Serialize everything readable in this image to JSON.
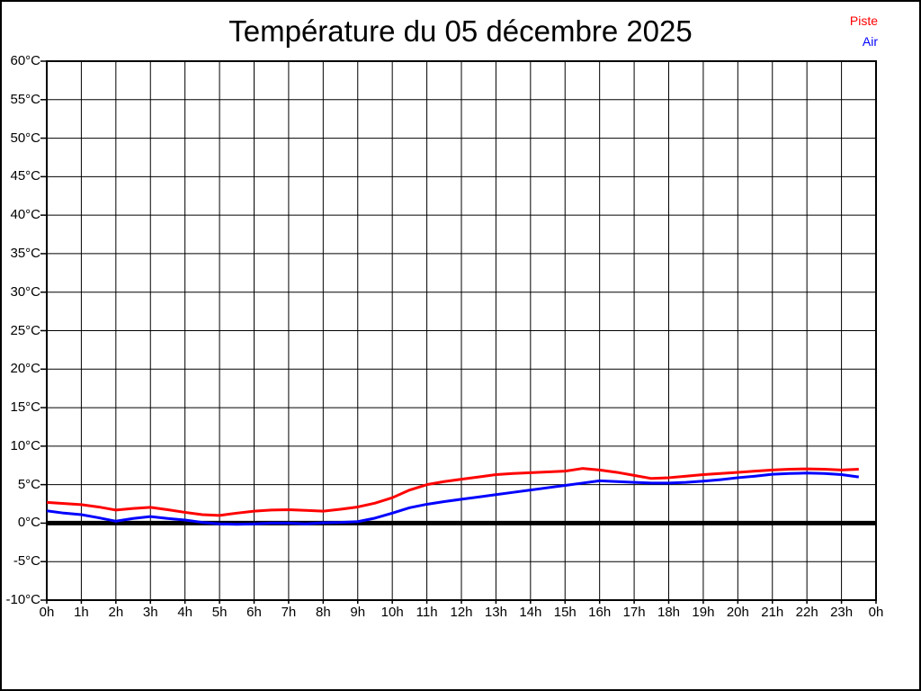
{
  "title": "Température du 05 décembre 2025",
  "legend": {
    "position": "top-right",
    "items": [
      {
        "label": "Piste",
        "color": "#ff0000"
      },
      {
        "label": "Air",
        "color": "#0000ff"
      }
    ]
  },
  "chart_data": {
    "type": "line",
    "title": "Température du 05 décembre 2025",
    "xlabel": "",
    "ylabel": "",
    "y_unit": "°C",
    "x_unit": "h",
    "xlim_hours": [
      0,
      24
    ],
    "ylim": [
      -10,
      60
    ],
    "y_step": 5,
    "x_step": 1,
    "grid": true,
    "zero_line_bold": true,
    "y_tick_labels": [
      "60°C",
      "55°C",
      "50°C",
      "45°C",
      "40°C",
      "35°C",
      "30°C",
      "25°C",
      "20°C",
      "15°C",
      "10°C",
      "5°C",
      "0°C",
      "-5°C",
      "-10°C"
    ],
    "x_tick_labels": [
      "0h",
      "1h",
      "2h",
      "3h",
      "4h",
      "5h",
      "6h",
      "7h",
      "8h",
      "9h",
      "10h",
      "11h",
      "12h",
      "13h",
      "14h",
      "15h",
      "16h",
      "17h",
      "18h",
      "19h",
      "20h",
      "21h",
      "22h",
      "23h",
      "0h"
    ],
    "series": [
      {
        "name": "Piste",
        "color": "#ff0000",
        "x": [
          0,
          0.5,
          1,
          1.5,
          2,
          2.5,
          3,
          3.5,
          4,
          4.5,
          5,
          5.5,
          6,
          6.5,
          7,
          7.5,
          8,
          8.5,
          9,
          9.5,
          10,
          10.5,
          11,
          11.5,
          12,
          12.5,
          13,
          13.5,
          14,
          14.5,
          15,
          15.5,
          16,
          16.5,
          17,
          17.5,
          18,
          18.5,
          19,
          19.5,
          20,
          20.5,
          21,
          21.5,
          22,
          22.5,
          23,
          23.5
        ],
        "values": [
          2.7,
          2.55,
          2.4,
          2.1,
          1.7,
          1.9,
          2.05,
          1.75,
          1.4,
          1.1,
          1.0,
          1.3,
          1.55,
          1.7,
          1.75,
          1.65,
          1.55,
          1.8,
          2.1,
          2.6,
          3.3,
          4.3,
          5.0,
          5.4,
          5.7,
          6.0,
          6.3,
          6.45,
          6.55,
          6.65,
          6.75,
          7.1,
          6.9,
          6.6,
          6.2,
          5.8,
          5.9,
          6.1,
          6.3,
          6.45,
          6.6,
          6.75,
          6.9,
          7.0,
          7.05,
          7.0,
          6.9,
          7.0
        ]
      },
      {
        "name": "Air",
        "color": "#0000ff",
        "x": [
          0,
          0.5,
          1,
          1.5,
          2,
          2.5,
          3,
          3.5,
          4,
          4.5,
          5,
          5.5,
          6,
          6.5,
          7,
          7.5,
          8,
          8.5,
          9,
          9.5,
          10,
          10.5,
          11,
          11.5,
          12,
          12.5,
          13,
          13.5,
          14,
          14.5,
          15,
          15.5,
          16,
          16.5,
          17,
          17.5,
          18,
          18.5,
          19,
          19.5,
          20,
          20.5,
          21,
          21.5,
          22,
          22.5,
          23,
          23.5
        ],
        "values": [
          1.6,
          1.3,
          1.1,
          0.7,
          0.25,
          0.6,
          0.85,
          0.6,
          0.4,
          0.1,
          -0.1,
          -0.15,
          -0.1,
          0.0,
          0.0,
          -0.1,
          0.05,
          0.1,
          0.2,
          0.65,
          1.3,
          2.0,
          2.45,
          2.8,
          3.1,
          3.4,
          3.7,
          4.0,
          4.3,
          4.6,
          4.9,
          5.2,
          5.5,
          5.4,
          5.3,
          5.2,
          5.2,
          5.3,
          5.45,
          5.65,
          5.9,
          6.1,
          6.35,
          6.45,
          6.5,
          6.45,
          6.3,
          6.0
        ]
      }
    ]
  }
}
